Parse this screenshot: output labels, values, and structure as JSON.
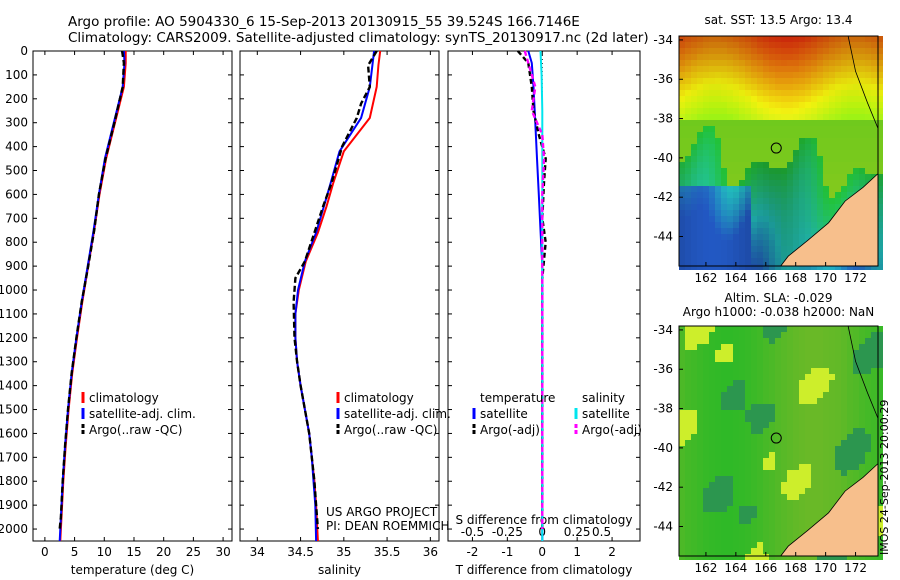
{
  "header": {
    "line1": "Argo profile: AO 5904330_6 15-Sep-2013 20130915_55 39.524S 166.7146E",
    "line2": "Climatology: CARS2009. Satellite-adjusted climatology: synTS_20130917.nc (2d later)"
  },
  "footer": {
    "project": "US ARGO PROJECT",
    "pi": "PI: DEAN ROEMMICH",
    "stamp": "IMOS 24-Sep-2013 20:00:29"
  },
  "colors": {
    "climatology": "#ff0000",
    "satellite_t": "#0000ff",
    "argo": "#000000",
    "satellite_s": "#00e5ee",
    "argo_s": "#ff00ff",
    "land": "#f7bf8c"
  },
  "depth_axis": {
    "ylim": [
      0,
      2050
    ],
    "ticks": [
      0,
      100,
      200,
      300,
      400,
      500,
      600,
      700,
      800,
      900,
      1000,
      1100,
      1200,
      1300,
      1400,
      1500,
      1600,
      1700,
      1800,
      1900,
      2000
    ]
  },
  "chart_data": [
    {
      "type": "line",
      "xlabel": "temperature (deg C)",
      "xlim": [
        -2,
        31.5
      ],
      "xticks": [
        0,
        5,
        10,
        15,
        20,
        25,
        30
      ],
      "legend": [
        "climatology",
        "satellite-adj. clim.",
        "Argo(..raw -QC)"
      ],
      "legend_position": "bottom-center",
      "series": [
        {
          "name": "climatology",
          "color": "climatology",
          "dash": "",
          "points": [
            [
              13.6,
              0
            ],
            [
              13.6,
              50
            ],
            [
              13.3,
              150
            ],
            [
              11.8,
              300
            ],
            [
              10.3,
              450
            ],
            [
              9.2,
              600
            ],
            [
              8.3,
              750
            ],
            [
              7.3,
              900
            ],
            [
              6.3,
              1050
            ],
            [
              5.4,
              1200
            ],
            [
              4.6,
              1350
            ],
            [
              4.0,
              1500
            ],
            [
              3.5,
              1650
            ],
            [
              3.1,
              1800
            ],
            [
              2.8,
              1950
            ],
            [
              2.6,
              2050
            ]
          ]
        },
        {
          "name": "satellite-adj. clim.",
          "color": "satellite_t",
          "dash": "",
          "points": [
            [
              13.3,
              0
            ],
            [
              13.4,
              50
            ],
            [
              13.1,
              150
            ],
            [
              11.6,
              300
            ],
            [
              10.1,
              450
            ],
            [
              9.1,
              600
            ],
            [
              8.2,
              750
            ],
            [
              7.2,
              900
            ],
            [
              6.2,
              1050
            ],
            [
              5.3,
              1200
            ],
            [
              4.5,
              1350
            ],
            [
              3.9,
              1500
            ],
            [
              3.4,
              1650
            ],
            [
              3.0,
              1800
            ],
            [
              2.7,
              1950
            ],
            [
              2.5,
              2050
            ]
          ]
        },
        {
          "name": "Argo(..raw -QC)",
          "color": "argo",
          "dash": "6,3",
          "points": [
            [
              13.0,
              0
            ],
            [
              13.3,
              50
            ],
            [
              13.1,
              150
            ],
            [
              11.7,
              300
            ],
            [
              10.2,
              450
            ],
            [
              9.1,
              600
            ],
            [
              8.3,
              750
            ],
            [
              7.3,
              900
            ],
            [
              6.2,
              1050
            ],
            [
              5.3,
              1200
            ],
            [
              4.5,
              1350
            ],
            [
              3.9,
              1500
            ],
            [
              3.4,
              1650
            ],
            [
              3.0,
              1800
            ],
            [
              2.7,
              1950
            ],
            [
              2.5,
              2000
            ]
          ]
        }
      ]
    },
    {
      "type": "line",
      "xlabel": "salinity",
      "xlim": [
        33.8,
        36.1
      ],
      "xticks": [
        34,
        34.5,
        35,
        35.5,
        36
      ],
      "legend": [
        "climatology",
        "satellite-adj. clim.",
        "Argo(..raw -QC)"
      ],
      "legend_position": "bottom-right",
      "series": [
        {
          "name": "climatology",
          "color": "climatology",
          "dash": "",
          "points": [
            [
              35.42,
              0
            ],
            [
              35.4,
              60
            ],
            [
              35.38,
              150
            ],
            [
              35.3,
              280
            ],
            [
              35.0,
              420
            ],
            [
              34.88,
              550
            ],
            [
              34.8,
              650
            ],
            [
              34.7,
              760
            ],
            [
              34.56,
              880
            ],
            [
              34.48,
              1000
            ],
            [
              34.44,
              1100
            ],
            [
              34.44,
              1200
            ],
            [
              34.46,
              1300
            ],
            [
              34.5,
              1400
            ],
            [
              34.55,
              1500
            ],
            [
              34.6,
              1600
            ],
            [
              34.63,
              1700
            ],
            [
              34.66,
              1800
            ],
            [
              34.68,
              1900
            ],
            [
              34.7,
              2050
            ]
          ]
        },
        {
          "name": "satellite-adj. clim.",
          "color": "satellite_t",
          "dash": "",
          "points": [
            [
              35.35,
              0
            ],
            [
              35.33,
              60
            ],
            [
              35.3,
              150
            ],
            [
              35.2,
              280
            ],
            [
              34.95,
              420
            ],
            [
              34.85,
              550
            ],
            [
              34.77,
              650
            ],
            [
              34.68,
              760
            ],
            [
              34.55,
              880
            ],
            [
              34.47,
              1000
            ],
            [
              34.44,
              1100
            ],
            [
              34.44,
              1200
            ],
            [
              34.46,
              1300
            ],
            [
              34.5,
              1400
            ],
            [
              34.55,
              1500
            ],
            [
              34.6,
              1600
            ],
            [
              34.63,
              1700
            ],
            [
              34.65,
              1800
            ],
            [
              34.67,
              1900
            ],
            [
              34.68,
              2050
            ]
          ]
        },
        {
          "name": "Argo(..raw -QC)",
          "color": "argo",
          "dash": "6,3",
          "points": [
            [
              35.38,
              0
            ],
            [
              35.28,
              60
            ],
            [
              35.3,
              150
            ],
            [
              35.2,
              220
            ],
            [
              35.15,
              280
            ],
            [
              34.98,
              400
            ],
            [
              34.86,
              550
            ],
            [
              34.76,
              650
            ],
            [
              34.66,
              760
            ],
            [
              34.55,
              880
            ],
            [
              34.44,
              950
            ],
            [
              34.42,
              1050
            ],
            [
              34.43,
              1200
            ],
            [
              34.46,
              1300
            ],
            [
              34.5,
              1400
            ],
            [
              34.55,
              1500
            ],
            [
              34.6,
              1600
            ],
            [
              34.63,
              1700
            ],
            [
              34.66,
              1800
            ],
            [
              34.68,
              1900
            ],
            [
              34.7,
              2000
            ]
          ]
        }
      ]
    },
    {
      "type": "line",
      "xlabel": "T difference from climatology",
      "xlabel_top": "S difference from climatology",
      "xlim": [
        -2.7,
        2.8
      ],
      "xticks": [
        -2,
        -1,
        0,
        1,
        2
      ],
      "xticks_top_labels": [
        "-0.5",
        "-0.25",
        "0",
        "0.25",
        "0.5"
      ],
      "legend": [
        "temperature",
        "satellite",
        "Argo(-adj)",
        "salinity",
        "satellite",
        "Argo(-adj)"
      ],
      "legend_position": "bottom-center",
      "series": [
        {
          "name": "satellite",
          "color": "satellite_t",
          "dash": "",
          "points": [
            [
              -0.4,
              0
            ],
            [
              -0.3,
              50
            ],
            [
              -0.25,
              150
            ],
            [
              -0.2,
              300
            ],
            [
              -0.15,
              450
            ],
            [
              -0.1,
              600
            ],
            [
              -0.05,
              750
            ],
            [
              0,
              900
            ],
            [
              0,
              1100
            ],
            [
              0,
              1300
            ],
            [
              0,
              1500
            ],
            [
              0,
              1700
            ],
            [
              0,
              1900
            ],
            [
              0,
              2050
            ]
          ]
        },
        {
          "name": "Argo(-adj)",
          "color": "argo",
          "dash": "5,3",
          "points": [
            [
              -0.7,
              0
            ],
            [
              -0.4,
              50
            ],
            [
              -0.3,
              150
            ],
            [
              -0.25,
              250
            ],
            [
              -0.1,
              350
            ],
            [
              0.1,
              450
            ],
            [
              0.05,
              550
            ],
            [
              0,
              700
            ],
            [
              0.1,
              800
            ],
            [
              0,
              950
            ],
            [
              0,
              1100
            ],
            [
              0,
              1300
            ],
            [
              0,
              1500
            ],
            [
              0,
              1700
            ],
            [
              0,
              2000
            ]
          ]
        },
        {
          "name": "salinity satellite",
          "color": "satellite_s",
          "dash": "",
          "points": [
            [
              -0.05,
              0
            ],
            [
              -0.02,
              100
            ],
            [
              0,
              250
            ],
            [
              0,
              500
            ],
            [
              0,
              800
            ],
            [
              0,
              1100
            ],
            [
              0,
              1400
            ],
            [
              0,
              1700
            ],
            [
              0,
              2050
            ]
          ]
        },
        {
          "name": "salinity Argo(-adj)",
          "color": "argo_s",
          "dash": "5,3",
          "points": [
            [
              -0.5,
              0
            ],
            [
              -0.4,
              50
            ],
            [
              -0.2,
              150
            ],
            [
              -0.3,
              250
            ],
            [
              0,
              350
            ],
            [
              0.05,
              450
            ],
            [
              0,
              600
            ],
            [
              0,
              800
            ],
            [
              0,
              1000
            ],
            [
              0,
              1200
            ],
            [
              0,
              1400
            ],
            [
              0,
              1700
            ],
            [
              0,
              2000
            ]
          ]
        }
      ]
    },
    {
      "type": "heatmap",
      "title": "sat. SST: 13.5  Argo: 13.4",
      "xlim": [
        160.2,
        173.5
      ],
      "ylim": [
        -45.5,
        -33.8
      ],
      "xticks": [
        162,
        164,
        166,
        168,
        170,
        172
      ],
      "yticks": [
        -34,
        -36,
        -38,
        -40,
        -42,
        -44
      ],
      "argo_position": [
        166.7,
        -39.5
      ],
      "field": "sst"
    },
    {
      "type": "heatmap",
      "title_line1": "Altim. SLA: -0.029",
      "title_line2": "Argo h1000: -0.038 h2000: NaN",
      "xlim": [
        160.2,
        173.5
      ],
      "ylim": [
        -45.5,
        -33.8
      ],
      "xticks": [
        162,
        164,
        166,
        168,
        170,
        172
      ],
      "yticks": [
        -34,
        -36,
        -38,
        -40,
        -42,
        -44
      ],
      "argo_position": [
        166.7,
        -39.5
      ],
      "field": "sla"
    }
  ]
}
